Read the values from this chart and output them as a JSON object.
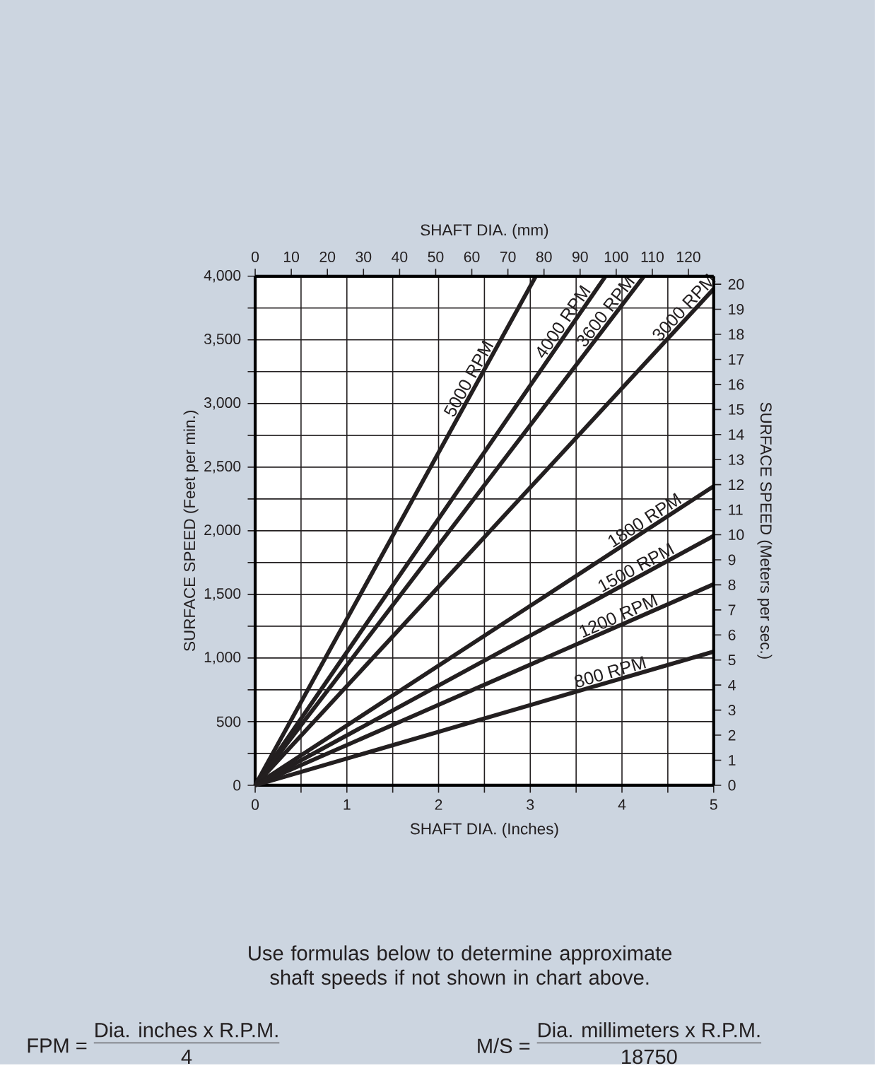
{
  "chart_data": {
    "type": "line",
    "xlabel": "SHAFT DIA. (Inches)",
    "ylabel": "SURFACE SPEED (Feet per min.)",
    "x2label": "SHAFT DIA. (mm)",
    "y2label": "SURFACE SPEED (Meters per sec.)",
    "xlim": [
      0,
      5
    ],
    "ylim": [
      0,
      4000
    ],
    "x2lim": [
      0,
      127
    ],
    "y2lim": [
      0,
      20.32
    ],
    "xticks": [
      0,
      {
        "value": 0.5,
        "label": null
      },
      1,
      {
        "value": 1.5,
        "label": null
      },
      2,
      {
        "value": 2.5,
        "label": null
      },
      3,
      {
        "value": 3.5,
        "label": null
      },
      4,
      {
        "value": 4.5,
        "label": null
      },
      5
    ],
    "yticks": [
      0,
      {
        "value": 250,
        "label": null
      },
      500,
      {
        "value": 750,
        "label": null
      },
      {
        "value": 1000,
        "label": "1,000"
      },
      {
        "value": 1250,
        "label": null
      },
      {
        "value": 1500,
        "label": "1,500"
      },
      {
        "value": 1750,
        "label": null
      },
      {
        "value": 2000,
        "label": "2,000"
      },
      {
        "value": 2250,
        "label": null
      },
      {
        "value": 2500,
        "label": "2,500"
      },
      {
        "value": 2750,
        "label": null
      },
      {
        "value": 3000,
        "label": "3,000"
      },
      {
        "value": 3250,
        "label": null
      },
      {
        "value": 3500,
        "label": "3,500"
      },
      {
        "value": 3750,
        "label": null
      },
      {
        "value": 4000,
        "label": "4,000"
      }
    ],
    "x2ticks": [
      0,
      10,
      20,
      30,
      40,
      50,
      60,
      70,
      80,
      90,
      100,
      110,
      120
    ],
    "y2ticks": [
      0,
      1,
      2,
      3,
      4,
      5,
      6,
      7,
      8,
      9,
      10,
      11,
      12,
      13,
      14,
      15,
      16,
      17,
      18,
      19,
      20
    ],
    "grid": true,
    "marker": "none",
    "line_style": "solid",
    "series": [
      {
        "name": "5000 RPM",
        "color": "#231f20",
        "x": [
          0,
          3.06
        ],
        "values": [
          0,
          4000
        ]
      },
      {
        "name": "4000 RPM",
        "color": "#231f20",
        "x": [
          0,
          3.82
        ],
        "values": [
          0,
          4000
        ]
      },
      {
        "name": "3600 RPM",
        "color": "#231f20",
        "x": [
          0,
          4.24
        ],
        "values": [
          0,
          4000
        ]
      },
      {
        "name": "3000 RPM",
        "color": "#231f20",
        "x": [
          0,
          5
        ],
        "values": [
          0,
          3900
        ]
      },
      {
        "name": "1800 RPM",
        "color": "#231f20",
        "x": [
          0,
          5
        ],
        "values": [
          0,
          2350
        ]
      },
      {
        "name": "1500 RPM",
        "color": "#231f20",
        "x": [
          0,
          5
        ],
        "values": [
          0,
          1960
        ]
      },
      {
        "name": "1200 RPM",
        "color": "#231f20",
        "x": [
          0,
          5
        ],
        "values": [
          0,
          1580
        ]
      },
      {
        "name": "800 RPM",
        "color": "#231f20",
        "x": [
          0,
          5
        ],
        "values": [
          0,
          1050
        ]
      }
    ],
    "annotations": [
      "Use formulas below to determine approximate shaft speeds if not shown in chart above.",
      "FPM =",
      "Dia. inches x R.P.M.",
      "4",
      "M/S =",
      "Dia. millimeters x R.P.M.",
      "18750"
    ]
  }
}
